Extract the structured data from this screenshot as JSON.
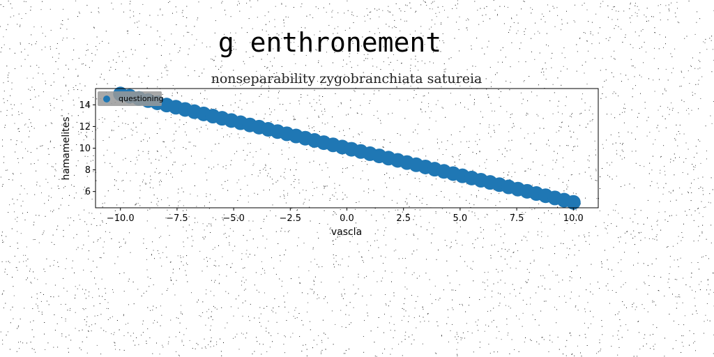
{
  "chart_data": {
    "type": "scatter",
    "suptitle": "g enthronement",
    "title": "nonseparability zygobranchiata satureia",
    "xlabel": "vascla",
    "ylabel": "hamamelites",
    "xlim": [
      -11.1,
      11.1
    ],
    "ylim": [
      4.5,
      15.5
    ],
    "xticks": [
      -10.0,
      -7.5,
      -5.0,
      -2.5,
      0.0,
      2.5,
      5.0,
      7.5,
      10.0
    ],
    "xtick_labels": [
      "−10.0",
      "−7.5",
      "−5.0",
      "−2.5",
      "0.0",
      "2.5",
      "5.0",
      "7.5",
      "10.0"
    ],
    "yticks": [
      6,
      8,
      10,
      12,
      14
    ],
    "ytick_labels": [
      "6",
      "8",
      "10",
      "12",
      "14"
    ],
    "grid": false,
    "legend": {
      "position": "top-left",
      "entries": [
        "questioning"
      ]
    },
    "series": [
      {
        "name": "questioning",
        "color": "#1f77b4",
        "x_start": -10.0,
        "x_end": 10.0,
        "y_start": 15.0,
        "y_end": 5.0,
        "count": 50
      }
    ]
  }
}
